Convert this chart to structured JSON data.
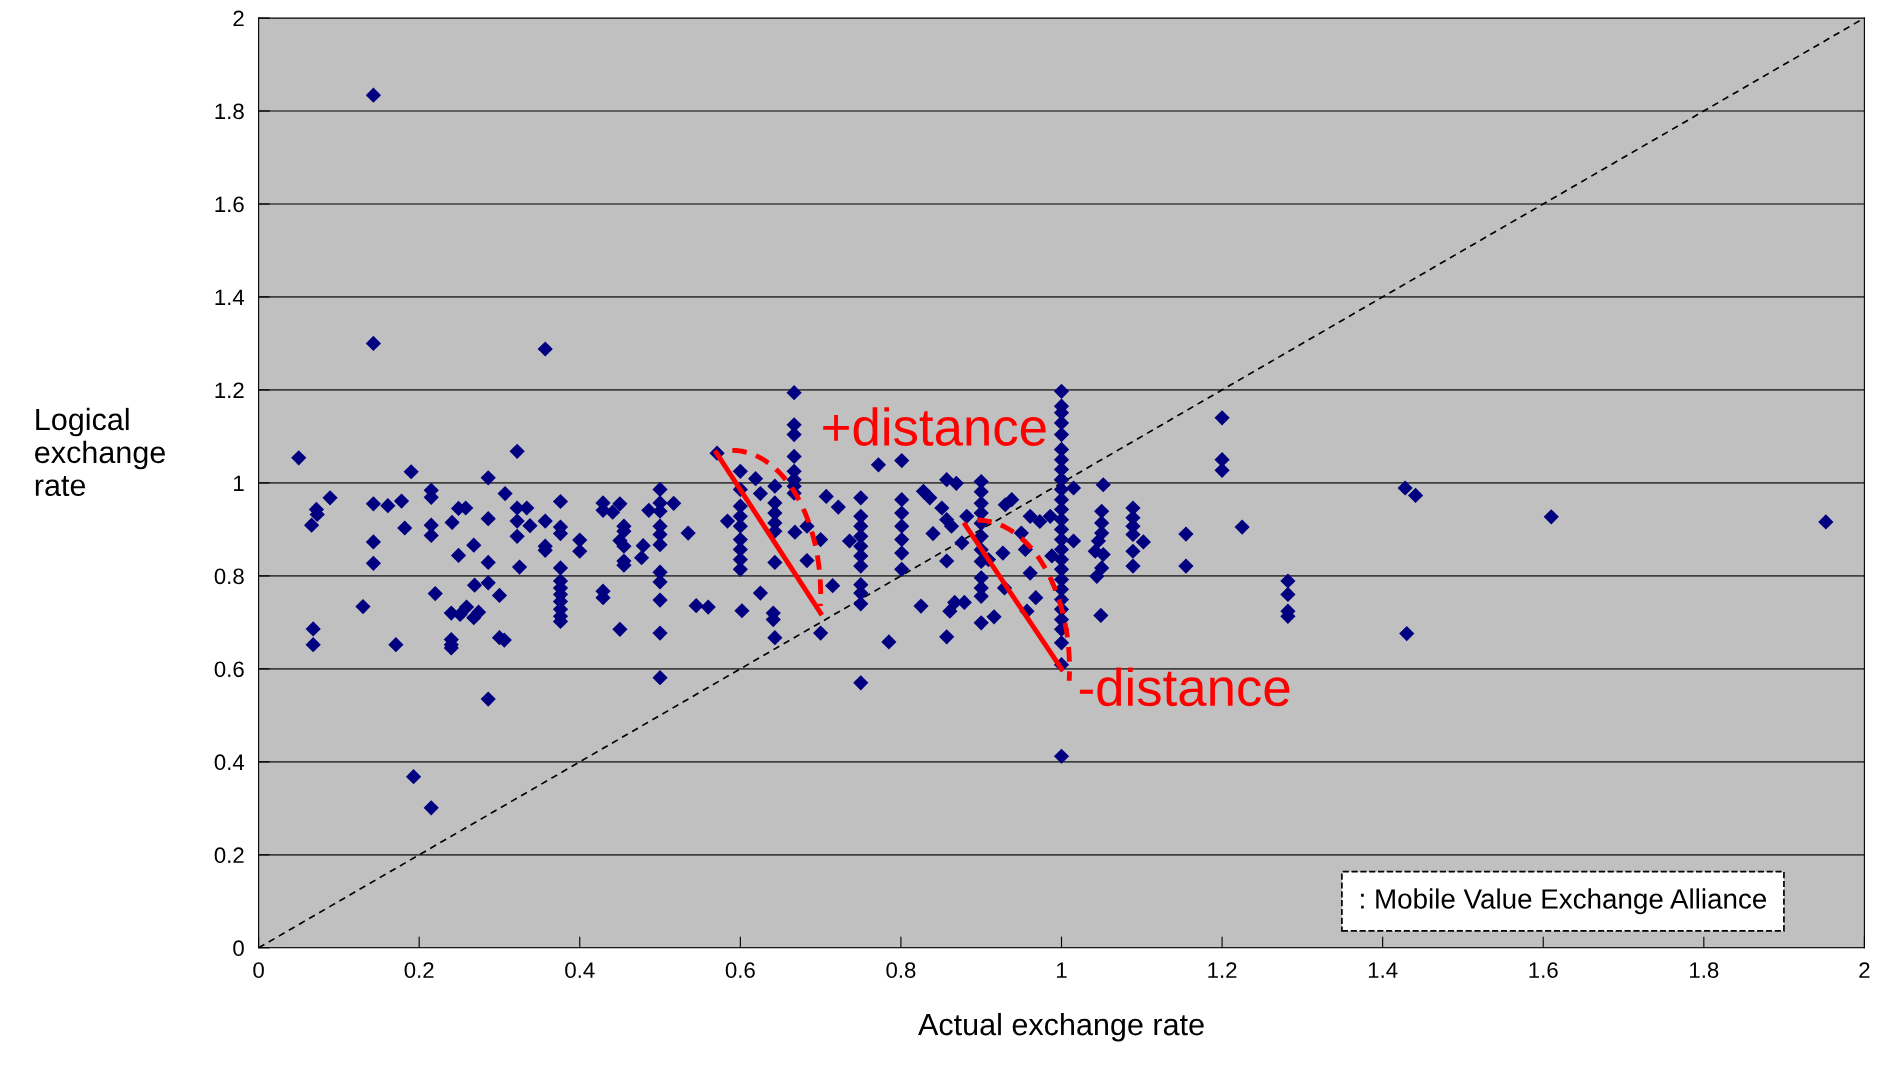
{
  "chart_data": {
    "type": "scatter",
    "xlabel": "Actual exchange rate",
    "ylabel": "Logical\nexchange\nrate",
    "xlim": [
      0,
      2
    ],
    "ylim": [
      0,
      2
    ],
    "xticks": [
      0,
      0.2,
      0.4,
      0.6,
      0.8,
      1,
      1.2,
      1.4,
      1.6,
      1.8,
      2
    ],
    "yticks": [
      0,
      0.2,
      0.4,
      0.6,
      0.8,
      1,
      1.2,
      1.4,
      1.6,
      1.8,
      2
    ],
    "grid": "y",
    "marker": "diamond",
    "legend": false,
    "annotations": [
      "+distance",
      {
        "text": "-distance",
        "x": 1.0,
        "y": 0.609
      },
      ": Mobile Value Exchange Alliance"
    ],
    "series": [
      {
        "color": "#000080",
        "x": [
          0.05,
          0.072,
          0.073,
          0.066,
          0.089,
          0.143,
          0.143,
          0.143,
          0.161,
          0.178,
          0.19,
          0.182,
          0.215,
          0.215,
          0.215,
          0.215,
          0.241,
          0.249,
          0.258,
          0.286,
          0.286,
          0.307,
          0.322,
          0.322,
          0.334,
          0.322,
          0.338,
          0.322,
          0.357,
          0.376,
          0.376,
          0.376,
          0.357,
          0.357,
          0.4,
          0.4,
          0.249,
          0.268,
          0.286,
          0.325,
          0.429,
          0.429,
          0.441,
          0.45,
          0.455,
          0.455,
          0.45,
          0.455,
          0.455,
          0.455,
          0.479,
          0.477,
          0.486,
          0.5,
          0.5,
          0.5,
          0.5,
          0.5,
          0.5,
          0.517,
          0.376,
          0.376,
          0.376,
          0.376,
          0.376,
          0.376,
          0.376,
          0.376,
          0.5,
          0.5,
          0.5,
          0.5,
          0.5,
          0.429,
          0.429,
          0.45,
          0.13,
          0.068,
          0.068,
          0.171,
          0.22,
          0.24,
          0.24,
          0.24,
          0.24,
          0.251,
          0.259,
          0.268,
          0.274,
          0.269,
          0.286,
          0.3,
          0.3,
          0.306,
          0.286,
          0.193,
          0.215,
          0.535,
          0.545,
          0.56,
          0.571,
          0.584,
          0.6,
          0.6,
          0.6,
          0.6,
          0.6,
          0.6,
          0.6,
          0.6,
          0.6,
          0.602,
          0.619,
          0.625,
          0.643,
          0.643,
          0.643,
          0.643,
          0.643,
          0.643,
          0.625,
          0.641,
          0.641,
          0.643,
          0.667,
          0.667,
          0.667,
          0.667,
          0.667,
          0.667,
          0.667,
          0.667,
          0.668,
          0.683,
          0.683,
          0.7,
          0.7,
          0.707,
          0.722,
          0.715,
          0.736,
          0.75,
          0.75,
          0.75,
          0.75,
          0.75,
          0.75,
          0.75,
          0.75,
          0.75,
          0.75,
          0.75,
          0.772,
          0.785,
          0.801,
          0.801,
          0.801,
          0.801,
          0.801,
          0.801,
          0.801,
          0.825,
          0.828,
          0.836,
          0.84,
          0.851,
          0.857,
          0.857,
          0.857,
          0.857,
          0.869,
          0.861,
          0.867,
          0.879,
          0.863,
          0.876,
          0.882,
          0.9,
          0.9,
          0.9,
          0.9,
          0.9,
          0.9,
          0.9,
          0.9,
          0.9,
          0.9,
          0.9,
          0.9,
          0.909,
          0.916,
          0.927,
          0.929,
          0.93,
          0.938,
          0.961,
          0.973,
          0.95,
          0.955,
          0.961,
          0.968,
          0.957,
          0.986,
          0.988,
          1.0,
          1.0,
          1.0,
          1.0,
          1.0,
          1.0,
          1.0,
          1.0,
          1.0,
          1.0,
          1.0,
          1.0,
          1.0,
          1.0,
          1.0,
          1.0,
          1.0,
          1.0,
          1.0,
          1.0,
          1.0,
          1.0,
          1.0,
          1.0,
          1.0,
          1.0,
          1.0,
          1.0,
          1.015,
          1.015,
          1.052,
          1.05,
          1.05,
          1.05,
          1.046,
          1.042,
          1.052,
          1.05,
          1.044,
          1.049,
          1.089,
          1.089,
          1.089,
          1.089,
          1.102,
          1.089,
          1.089,
          1.155,
          1.155,
          1.2,
          1.2,
          1.2,
          1.225,
          1.282,
          1.282,
          1.282,
          1.282,
          1.428,
          1.441,
          1.43,
          1.61,
          1.952,
          0.143,
          0.143,
          0.357
        ],
        "values": [
          1.054,
          0.943,
          0.932,
          0.909,
          0.968,
          0.955,
          0.873,
          0.827,
          0.951,
          0.961,
          1.024,
          0.903,
          0.984,
          0.969,
          0.909,
          0.887,
          0.915,
          0.945,
          0.946,
          1.011,
          0.923,
          0.977,
          1.068,
          0.946,
          0.946,
          0.918,
          0.908,
          0.885,
          0.918,
          0.96,
          0.905,
          0.891,
          0.864,
          0.855,
          0.877,
          0.853,
          0.844,
          0.866,
          0.829,
          0.819,
          0.957,
          0.941,
          0.937,
          0.955,
          0.907,
          0.896,
          0.876,
          0.864,
          0.832,
          0.823,
          0.865,
          0.839,
          0.941,
          0.986,
          0.957,
          0.939,
          0.907,
          0.889,
          0.867,
          0.956,
          0.817,
          0.789,
          0.774,
          0.76,
          0.745,
          0.728,
          0.713,
          0.702,
          0.808,
          0.787,
          0.748,
          0.677,
          0.581,
          0.767,
          0.753,
          0.685,
          0.734,
          0.686,
          0.652,
          0.652,
          0.762,
          0.72,
          0.663,
          0.652,
          0.645,
          0.717,
          0.733,
          0.71,
          0.722,
          0.78,
          0.785,
          0.758,
          0.667,
          0.662,
          0.535,
          0.368,
          0.301,
          0.892,
          0.736,
          0.733,
          1.064,
          0.918,
          1.025,
          0.986,
          0.95,
          0.928,
          0.907,
          0.878,
          0.857,
          0.835,
          0.814,
          0.725,
          1.009,
          0.977,
          0.993,
          0.957,
          0.935,
          0.914,
          0.896,
          0.829,
          0.763,
          0.72,
          0.706,
          0.667,
          1.194,
          1.125,
          1.104,
          1.057,
          1.025,
          1.007,
          0.993,
          0.978,
          0.894,
          0.907,
          0.833,
          0.878,
          0.677,
          0.971,
          0.948,
          0.779,
          0.875,
          0.968,
          0.928,
          0.907,
          0.885,
          0.864,
          0.843,
          0.821,
          0.781,
          0.763,
          0.74,
          0.57,
          1.039,
          0.658,
          1.048,
          0.964,
          0.935,
          0.907,
          0.878,
          0.849,
          0.814,
          0.735,
          0.982,
          0.968,
          0.891,
          0.946,
          1.007,
          0.921,
          0.832,
          0.669,
          0.999,
          0.724,
          0.743,
          0.743,
          0.907,
          0.871,
          0.928,
          1.003,
          0.981,
          0.956,
          0.935,
          0.913,
          0.885,
          0.856,
          0.831,
          0.796,
          0.774,
          0.756,
          0.699,
          0.835,
          0.712,
          0.849,
          0.774,
          0.953,
          0.964,
          0.928,
          0.917,
          0.892,
          0.857,
          0.806,
          0.753,
          0.724,
          0.928,
          0.843,
          1.197,
          1.165,
          1.151,
          1.129,
          1.104,
          1.072,
          1.05,
          1.029,
          1.007,
          0.986,
          0.964,
          0.943,
          0.921,
          0.9,
          0.878,
          0.857,
          0.835,
          0.814,
          0.792,
          0.771,
          0.749,
          0.728,
          0.706,
          0.685,
          0.656,
          0.609,
          0.412,
          1.007,
          0.989,
          0.875,
          0.996,
          0.939,
          0.914,
          0.892,
          0.875,
          0.853,
          0.846,
          0.817,
          0.799,
          0.715,
          0.946,
          0.925,
          0.907,
          0.889,
          0.873,
          0.853,
          0.821,
          0.89,
          0.821,
          1.14,
          1.05,
          1.027,
          0.905,
          0.789,
          0.76,
          0.724,
          0.713,
          0.989,
          0.973,
          0.676,
          0.927,
          0.916,
          1.834,
          1.3,
          1.288
        ]
      },
      {
        "type": "line",
        "color": "#000000",
        "line_style": "dashed",
        "marker": "none",
        "x": [
          0,
          2
        ],
        "values": [
          0,
          2
        ]
      }
    ]
  }
}
